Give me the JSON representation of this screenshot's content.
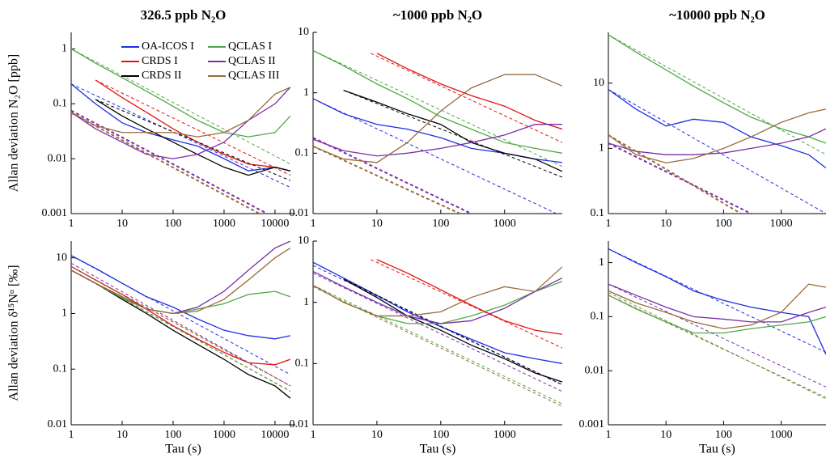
{
  "chart_data": [
    {
      "type": "line",
      "title": "326.5 ppb N₂O",
      "ylabel": "Allan deviation N₂O [ppb]",
      "log_x": true,
      "log_y": true,
      "legend": "upper center",
      "x": [
        1,
        3,
        10,
        30,
        100,
        300,
        1000,
        3000,
        10000,
        20000
      ],
      "xlim": [
        1,
        25000
      ],
      "xticks": [
        1,
        10,
        100,
        1000,
        10000
      ],
      "ylim": [
        0.001,
        2
      ],
      "yticks": [
        0.001,
        0.01,
        0.1,
        1
      ],
      "series": [
        {
          "name": "OA-ICOS I",
          "color": "#1f2fe0",
          "values": [
            0.23,
            0.1,
            0.045,
            0.03,
            0.022,
            0.017,
            0.01,
            0.006,
            0.007,
            0.006
          ],
          "fit_x": [
            1,
            20000
          ],
          "fit_values": [
            0.23,
            0.003
          ]
        },
        {
          "name": "CRDS I",
          "color": "#e0140f",
          "values": [
            null,
            0.27,
            0.13,
            0.07,
            0.035,
            0.02,
            0.012,
            0.008,
            0.007,
            0.006
          ],
          "fit_x": [
            3,
            20000
          ],
          "fit_values": [
            0.27,
            0.005
          ]
        },
        {
          "name": "CRDS II",
          "color": "#000000",
          "values": [
            null,
            0.12,
            0.06,
            0.035,
            0.02,
            0.012,
            0.007,
            0.005,
            0.007,
            0.006
          ],
          "fit_x": [
            3,
            20000
          ],
          "fit_values": [
            0.12,
            0.004
          ]
        },
        {
          "name": "QCLAS I",
          "color": "#4faa45",
          "values": [
            1.0,
            0.55,
            0.3,
            0.17,
            0.09,
            0.05,
            0.03,
            0.025,
            0.03,
            0.06
          ],
          "fit_x": [
            1,
            20000
          ],
          "fit_values": [
            1.0,
            0.008
          ]
        },
        {
          "name": "QCLAS II",
          "color": "#7a2fa8",
          "values": [
            0.07,
            0.035,
            0.02,
            0.012,
            0.01,
            0.012,
            0.02,
            0.05,
            0.1,
            0.2
          ],
          "fit_x": [
            1,
            20000
          ],
          "fit_values": [
            0.075,
            0.0006
          ]
        },
        {
          "name": "QCLAS III",
          "color": "#9a6b3b",
          "values": [
            0.07,
            0.04,
            0.03,
            0.03,
            0.03,
            0.025,
            0.03,
            0.05,
            0.15,
            0.2
          ],
          "fit_x": [
            1,
            20000
          ],
          "fit_values": [
            0.068,
            0.0005
          ]
        }
      ]
    },
    {
      "type": "line",
      "title": "~1000 ppb N₂O",
      "log_x": true,
      "log_y": true,
      "x": [
        1,
        3,
        10,
        30,
        100,
        300,
        1000,
        3000,
        8000
      ],
      "xlim": [
        1,
        8000
      ],
      "xticks": [
        1,
        10,
        100,
        1000
      ],
      "ylim": [
        0.01,
        10
      ],
      "yticks": [
        0.01,
        0.1,
        1,
        10
      ],
      "series": [
        {
          "color": "#1f2fe0",
          "values": [
            0.8,
            0.45,
            0.3,
            0.25,
            0.18,
            0.12,
            0.1,
            0.08,
            0.07
          ],
          "fit_x": [
            1,
            8000
          ],
          "fit_values": [
            0.8,
            0.009
          ]
        },
        {
          "color": "#e0140f",
          "values": [
            null,
            null,
            4.5,
            2.5,
            1.4,
            0.9,
            0.6,
            0.35,
            0.25
          ],
          "fit_x": [
            8,
            8000
          ],
          "fit_values": [
            4.5,
            0.15
          ]
        },
        {
          "color": "#000000",
          "values": [
            null,
            1.1,
            0.7,
            0.45,
            0.3,
            0.15,
            0.1,
            0.08,
            0.05
          ],
          "fit_x": [
            3,
            8000
          ],
          "fit_values": [
            1.1,
            0.04
          ]
        },
        {
          "color": "#4faa45",
          "values": [
            5,
            2.8,
            1.4,
            0.8,
            0.4,
            0.25,
            0.15,
            0.12,
            0.1
          ],
          "fit_x": [
            1,
            8000
          ],
          "fit_values": [
            5,
            0.06
          ]
        },
        {
          "color": "#7a2fa8",
          "values": [
            0.17,
            0.11,
            0.09,
            0.1,
            0.12,
            0.15,
            0.2,
            0.3,
            0.3
          ],
          "fit_x": [
            1,
            300
          ],
          "fit_values": [
            0.18,
            0.01
          ]
        },
        {
          "color": "#9a6b3b",
          "values": [
            0.13,
            0.08,
            0.07,
            0.15,
            0.5,
            1.2,
            2,
            2,
            1.3
          ],
          "fit_x": [
            1,
            200
          ],
          "fit_values": [
            0.13,
            0.01
          ]
        }
      ]
    },
    {
      "type": "line",
      "title": "~10000 ppb N₂O",
      "log_x": true,
      "log_y": true,
      "x": [
        1,
        3,
        10,
        30,
        100,
        300,
        1000,
        3000,
        6000
      ],
      "xlim": [
        1,
        6000
      ],
      "xticks": [
        1,
        10,
        100,
        1000
      ],
      "ylim": [
        0.1,
        60
      ],
      "yticks": [
        0.1,
        1,
        10
      ],
      "series": [
        {
          "color": "#1f2fe0",
          "values": [
            8,
            4,
            2.2,
            2.8,
            2.5,
            1.5,
            1.1,
            0.8,
            0.5
          ],
          "fit_x": [
            1,
            6000
          ],
          "fit_values": [
            8,
            0.1
          ]
        },
        {
          "color": "#4faa45",
          "values": [
            55,
            30,
            16,
            9,
            5,
            3,
            2,
            1.5,
            1.2
          ],
          "fit_x": [
            1,
            6000
          ],
          "fit_values": [
            55,
            0.8
          ]
        },
        {
          "color": "#7a2fa8",
          "values": [
            1.2,
            0.9,
            0.8,
            0.8,
            0.85,
            1,
            1.2,
            1.5,
            2
          ],
          "fit_x": [
            1,
            300
          ],
          "fit_values": [
            1.2,
            0.1
          ]
        },
        {
          "color": "#9a6b3b",
          "values": [
            1.6,
            0.8,
            0.6,
            0.7,
            1,
            1.5,
            2.5,
            3.5,
            4
          ],
          "fit_x": [
            1,
            200
          ],
          "fit_values": [
            1.6,
            0.1
          ]
        }
      ]
    },
    {
      "type": "line",
      "ylabel": "Allan deviation δ¹⁵Nᵅ [‰]",
      "xlabel": "Tau (s)",
      "log_x": true,
      "log_y": true,
      "x": [
        1,
        3,
        10,
        30,
        100,
        300,
        1000,
        3000,
        10000,
        20000
      ],
      "xlim": [
        1,
        25000
      ],
      "xticks": [
        1,
        10,
        100,
        1000,
        10000
      ],
      "ylim": [
        0.01,
        20
      ],
      "yticks": [
        0.01,
        0.1,
        1,
        10
      ],
      "series": [
        {
          "color": "#1f2fe0",
          "values": [
            11,
            6.5,
            3.5,
            2,
            1.3,
            0.8,
            0.5,
            0.4,
            0.35,
            0.4
          ],
          "fit_x": [
            1,
            20000
          ],
          "fit_values": [
            11,
            0.08
          ]
        },
        {
          "color": "#e0140f",
          "values": [
            7,
            4,
            2.2,
            1.2,
            0.6,
            0.35,
            0.2,
            0.13,
            0.12,
            0.15
          ],
          "fit_x": [
            1,
            20000
          ],
          "fit_values": [
            7,
            0.05
          ]
        },
        {
          "color": "#000000",
          "values": [
            6,
            3.5,
            1.8,
            1,
            0.5,
            0.28,
            0.15,
            0.08,
            0.05,
            0.03
          ],
          "fit_x": [
            1,
            20000
          ],
          "fit_values": [
            6,
            0.04
          ]
        },
        {
          "color": "#4faa45",
          "values": [
            6,
            3.5,
            1.9,
            1.2,
            1,
            1.2,
            1.5,
            2.2,
            2.5,
            2
          ],
          "fit_x": [
            1,
            20000
          ],
          "fit_values": [
            6,
            0.04
          ]
        },
        {
          "color": "#7a2fa8",
          "values": [
            6,
            3.5,
            2,
            1.2,
            1,
            1.3,
            2.5,
            6,
            15,
            20
          ],
          "fit_x": [
            1,
            20000
          ],
          "fit_values": [
            8,
            0.05
          ]
        },
        {
          "color": "#9a6b3b",
          "values": [
            6,
            3.5,
            2,
            1.2,
            1,
            1.1,
            1.8,
            4,
            10,
            15
          ],
          "fit_x": [
            1,
            20000
          ],
          "fit_values": [
            7,
            0.05
          ]
        }
      ]
    },
    {
      "type": "line",
      "xlabel": "Tau (s)",
      "log_x": true,
      "log_y": true,
      "x": [
        1,
        3,
        10,
        30,
        100,
        300,
        1000,
        3000,
        8000
      ],
      "xlim": [
        1,
        8000
      ],
      "xticks": [
        1,
        10,
        100,
        1000
      ],
      "ylim": [
        0.01,
        10
      ],
      "yticks": [
        0.01,
        0.1,
        1,
        10
      ],
      "series": [
        {
          "color": "#1f2fe0",
          "values": [
            4.5,
            2.5,
            1.3,
            0.7,
            0.4,
            0.25,
            0.15,
            0.12,
            0.1
          ],
          "fit_x": [
            1,
            8000
          ],
          "fit_values": [
            4,
            0.045
          ]
        },
        {
          "color": "#e0140f",
          "values": [
            null,
            null,
            5,
            3,
            1.6,
            0.9,
            0.5,
            0.35,
            0.3
          ],
          "fit_x": [
            8,
            8000
          ],
          "fit_values": [
            5,
            0.18
          ]
        },
        {
          "color": "#000000",
          "values": [
            null,
            2.4,
            1.2,
            0.6,
            0.35,
            0.2,
            0.12,
            0.07,
            0.05
          ],
          "fit_x": [
            3,
            8000
          ],
          "fit_values": [
            2.4,
            0.045
          ]
        },
        {
          "color": "#4faa45",
          "values": [
            1.9,
            1,
            0.6,
            0.45,
            0.45,
            0.6,
            0.9,
            1.5,
            2.2
          ],
          "fit_x": [
            1,
            8000
          ],
          "fit_values": [
            1.9,
            0.022
          ]
        },
        {
          "color": "#7a2fa8",
          "values": [
            3.2,
            1.8,
            1,
            0.6,
            0.45,
            0.5,
            0.8,
            1.5,
            2.5
          ],
          "fit_x": [
            1,
            8000
          ],
          "fit_values": [
            3,
            0.035
          ]
        },
        {
          "color": "#9a6b3b",
          "values": [
            1.9,
            1,
            0.6,
            0.6,
            0.7,
            1.2,
            1.8,
            1.5,
            3.8
          ],
          "fit_x": [
            1,
            8000
          ],
          "fit_values": [
            1.8,
            0.02
          ]
        }
      ]
    },
    {
      "type": "line",
      "xlabel": "Tau (s)",
      "log_x": true,
      "log_y": true,
      "x": [
        1,
        3,
        10,
        30,
        100,
        300,
        1000,
        3000,
        6000
      ],
      "xlim": [
        1,
        6000
      ],
      "xticks": [
        1,
        10,
        100,
        1000
      ],
      "ylim": [
        0.001,
        2.5
      ],
      "yticks": [
        0.001,
        0.01,
        0.1,
        1
      ],
      "series": [
        {
          "color": "#1f2fe0",
          "values": [
            1.8,
            1,
            0.55,
            0.3,
            0.2,
            0.15,
            0.12,
            0.1,
            0.02
          ],
          "fit_x": [
            1,
            6000
          ],
          "fit_values": [
            1.8,
            0.022
          ]
        },
        {
          "color": "#4faa45",
          "values": [
            0.25,
            0.14,
            0.08,
            0.05,
            0.05,
            0.06,
            0.07,
            0.08,
            0.1
          ],
          "fit_x": [
            1,
            6000
          ],
          "fit_values": [
            0.28,
            0.003
          ]
        },
        {
          "color": "#7a2fa8",
          "values": [
            0.4,
            0.25,
            0.15,
            0.1,
            0.09,
            0.08,
            0.08,
            0.12,
            0.15
          ],
          "fit_x": [
            1,
            6000
          ],
          "fit_values": [
            0.4,
            0.005
          ]
        },
        {
          "color": "#9a6b3b",
          "values": [
            0.3,
            0.18,
            0.12,
            0.08,
            0.06,
            0.07,
            0.12,
            0.4,
            0.35
          ],
          "fit_x": [
            1,
            6000
          ],
          "fit_values": [
            0.25,
            0.0032
          ]
        }
      ]
    }
  ]
}
